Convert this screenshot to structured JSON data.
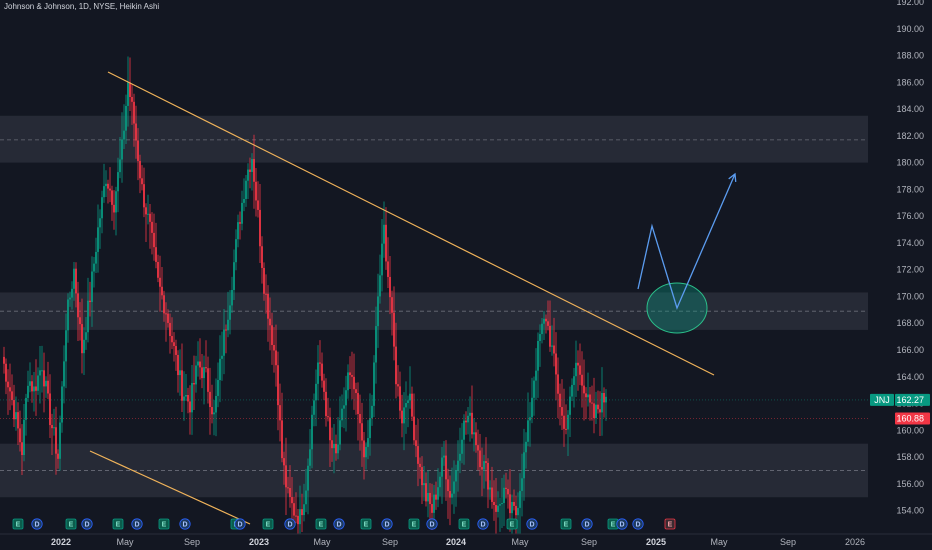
{
  "header": {
    "title": "Johnson & Johnson, 1D, NYSE, Heikin Ashi"
  },
  "chart_data": {
    "type": "candlestick",
    "title": "Johnson & Johnson, 1D, NYSE, Heikin Ashi",
    "symbol": "JNJ",
    "ylim": [
      153,
      192
    ],
    "y_ticks": [
      154,
      156,
      158,
      160,
      162,
      164,
      166,
      168,
      170,
      172,
      174,
      176,
      178,
      180,
      182,
      184,
      186,
      188,
      190,
      192
    ],
    "x_ticks": [
      {
        "label": "2022",
        "bold": true
      },
      {
        "label": "May",
        "bold": false
      },
      {
        "label": "Sep",
        "bold": false
      },
      {
        "label": "2023",
        "bold": true
      },
      {
        "label": "May",
        "bold": false
      },
      {
        "label": "Sep",
        "bold": false
      },
      {
        "label": "2024",
        "bold": true
      },
      {
        "label": "May",
        "bold": false
      },
      {
        "label": "Sep",
        "bold": false
      },
      {
        "label": "2025",
        "bold": true
      },
      {
        "label": "May",
        "bold": false
      },
      {
        "label": "Sep",
        "bold": false
      },
      {
        "label": "2026",
        "bold": false
      }
    ],
    "price_tags": [
      {
        "label": "JNJ",
        "value": "162.27",
        "color": "#089981"
      },
      {
        "value": "160.88",
        "color": "#f23645"
      }
    ],
    "zones": [
      {
        "from": 180.0,
        "to": 183.5,
        "mid": 181.7
      },
      {
        "from": 167.5,
        "to": 170.3,
        "mid": 168.9
      },
      {
        "from": 155.0,
        "to": 159.0,
        "mid": 157.0
      }
    ],
    "colors": {
      "up": "#089981",
      "down": "#f23645",
      "background": "#131722",
      "trendline": "#f0b35a",
      "projection": "#5b9cf0",
      "zone": "#2a2e39",
      "target_circle": "#089981"
    },
    "price_path": [
      [
        0,
        165.5
      ],
      [
        4,
        163
      ],
      [
        8,
        160
      ],
      [
        10,
        158.5
      ],
      [
        13,
        164
      ],
      [
        16,
        163
      ],
      [
        20,
        165
      ],
      [
        24,
        161
      ],
      [
        28,
        158
      ],
      [
        32,
        168
      ],
      [
        36,
        172
      ],
      [
        40,
        166
      ],
      [
        44,
        170
      ],
      [
        48,
        175
      ],
      [
        52,
        179
      ],
      [
        56,
        177
      ],
      [
        60,
        181
      ],
      [
        63,
        186
      ],
      [
        66,
        183
      ],
      [
        70,
        178
      ],
      [
        74,
        175
      ],
      [
        78,
        171
      ],
      [
        82,
        169
      ],
      [
        86,
        166
      ],
      [
        90,
        163
      ],
      [
        94,
        162
      ],
      [
        98,
        165
      ],
      [
        102,
        164
      ],
      [
        106,
        161
      ],
      [
        110,
        166
      ],
      [
        114,
        170
      ],
      [
        118,
        175
      ],
      [
        122,
        179
      ],
      [
        125,
        180.5
      ],
      [
        128,
        176
      ],
      [
        131,
        171
      ],
      [
        134,
        168
      ],
      [
        137,
        165
      ],
      [
        140,
        158
      ],
      [
        143,
        155
      ],
      [
        146,
        154
      ],
      [
        149,
        153.5
      ],
      [
        152,
        156
      ],
      [
        155,
        161
      ],
      [
        158,
        165
      ],
      [
        161,
        163
      ],
      [
        164,
        159
      ],
      [
        167,
        158
      ],
      [
        170,
        161
      ],
      [
        173,
        164
      ],
      [
        176,
        163
      ],
      [
        179,
        160
      ],
      [
        182,
        158
      ],
      [
        185,
        162
      ],
      [
        188,
        170
      ],
      [
        191,
        175
      ],
      [
        194,
        170
      ],
      [
        197,
        164
      ],
      [
        200,
        161
      ],
      [
        203,
        163
      ],
      [
        206,
        160
      ],
      [
        209,
        157
      ],
      [
        212,
        155
      ],
      [
        215,
        154
      ],
      [
        218,
        156
      ],
      [
        221,
        158
      ],
      [
        224,
        155
      ],
      [
        227,
        157
      ],
      [
        230,
        160
      ],
      [
        233,
        161
      ],
      [
        236,
        160
      ],
      [
        239,
        158
      ],
      [
        242,
        157
      ],
      [
        245,
        155
      ],
      [
        248,
        154
      ],
      [
        251,
        155.5
      ],
      [
        254,
        154
      ],
      [
        257,
        153.8
      ],
      [
        260,
        157
      ],
      [
        263,
        160
      ],
      [
        266,
        164
      ],
      [
        269,
        167
      ],
      [
        272,
        168.5
      ],
      [
        275,
        166
      ],
      [
        278,
        163
      ],
      [
        281,
        160
      ],
      [
        284,
        162
      ],
      [
        287,
        165
      ],
      [
        290,
        164
      ],
      [
        293,
        162
      ],
      [
        296,
        161
      ],
      [
        299,
        162
      ],
      [
        302,
        162.5
      ]
    ],
    "trendlines": [
      {
        "name": "upper",
        "from": [
          108,
          186.3
        ],
        "to": [
          714,
          164.6
        ]
      },
      {
        "name": "lower",
        "from": [
          90,
          158.5
        ],
        "to": [
          250,
          153.3
        ]
      }
    ],
    "projection_path": [
      [
        638,
        168.3
      ],
      [
        652,
        174.9
      ],
      [
        677,
        169.0
      ],
      [
        735,
        179.1
      ]
    ],
    "target_circle": {
      "center": [
        677,
        169.0
      ],
      "rx": 30,
      "ry": 25
    },
    "events": [
      {
        "type": "E",
        "x": 18
      },
      {
        "type": "D",
        "x": 37
      },
      {
        "type": "E",
        "x": 71
      },
      {
        "type": "D",
        "x": 87
      },
      {
        "type": "E",
        "x": 118
      },
      {
        "type": "D",
        "x": 137
      },
      {
        "type": "E",
        "x": 164
      },
      {
        "type": "D",
        "x": 185
      },
      {
        "type": "E",
        "x": 236
      },
      {
        "type": "D",
        "x": 240
      },
      {
        "type": "E",
        "x": 268
      },
      {
        "type": "D",
        "x": 290
      },
      {
        "type": "E",
        "x": 321
      },
      {
        "type": "D",
        "x": 339
      },
      {
        "type": "E",
        "x": 366
      },
      {
        "type": "D",
        "x": 387
      },
      {
        "type": "E",
        "x": 414
      },
      {
        "type": "D",
        "x": 432
      },
      {
        "type": "E",
        "x": 464
      },
      {
        "type": "D",
        "x": 483
      },
      {
        "type": "E",
        "x": 512
      },
      {
        "type": "D",
        "x": 532
      },
      {
        "type": "E",
        "x": 566
      },
      {
        "type": "D",
        "x": 587
      },
      {
        "type": "E",
        "x": 613
      },
      {
        "type": "D",
        "x": 622
      },
      {
        "type": "D",
        "x": 638
      },
      {
        "type": "E",
        "x": 670,
        "future": true
      }
    ]
  }
}
